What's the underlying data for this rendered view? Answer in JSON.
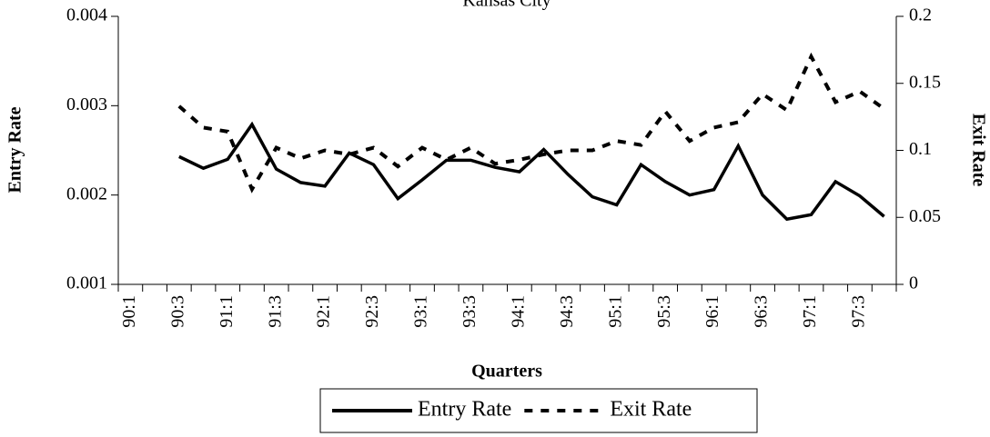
{
  "chart_data": {
    "type": "line",
    "title": "Kansas City",
    "x_label": "Quarters",
    "y_label": "Entry Rate",
    "y2_label": "Exit Rate",
    "categories": [
      "90:1",
      null,
      "90:3",
      null,
      "91:1",
      null,
      "91:3",
      null,
      "92:1",
      null,
      "92:3",
      null,
      "93:1",
      null,
      "93:3",
      null,
      "94:1",
      null,
      "94:3",
      null,
      "95:1",
      null,
      "95:3",
      null,
      "96:1",
      null,
      "96:3",
      null,
      "97:1",
      null,
      "97:3",
      null
    ],
    "series": [
      {
        "name": "Entry Rate",
        "color": "#000000",
        "line_style": "solid",
        "values": [
          null,
          null,
          0.00243,
          0.0023,
          0.0024,
          0.00279,
          0.00229,
          0.00214,
          0.0021,
          0.00247,
          0.00234,
          0.00196,
          0.00217,
          0.00239,
          0.00239,
          0.00231,
          0.00226,
          0.00251,
          0.00223,
          0.00198,
          0.00189,
          0.00234,
          0.00215,
          0.002,
          0.00206,
          0.00255,
          0.002,
          0.00173,
          0.00178,
          0.00215,
          0.00199,
          0.00176
        ]
      },
      {
        "name": "Exit Rate",
        "color": "#000000",
        "line_style": "dashed",
        "axis": "y2",
        "values": [
          null,
          null,
          0.133,
          0.117,
          0.114,
          0.071,
          0.102,
          0.094,
          0.1,
          0.097,
          0.102,
          0.088,
          0.102,
          0.093,
          0.102,
          0.09,
          0.093,
          0.097,
          0.1,
          0.1,
          0.107,
          0.104,
          0.129,
          0.107,
          0.117,
          0.121,
          0.142,
          0.13,
          0.17,
          0.136,
          0.144,
          0.131
        ]
      }
    ],
    "ylim": [
      0.001,
      0.004
    ],
    "yticks": [
      0.001,
      0.002,
      0.003,
      0.004
    ],
    "y2lim": [
      0,
      0.2
    ],
    "y2ticks": [
      0,
      0.05,
      0.1,
      0.15,
      0.2
    ],
    "legend": "bottom"
  }
}
